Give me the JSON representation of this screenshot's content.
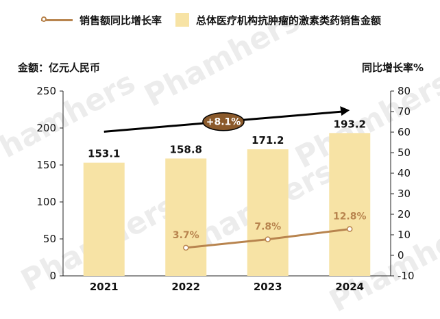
{
  "legend": {
    "line_label": "销售额同比增长率",
    "bar_label": "总体医疗机构抗肿瘤的激素类药销售金额"
  },
  "axis": {
    "left_title": "金额：亿元人民币",
    "right_title": "同比增长率%"
  },
  "watermark_text": "Phamhers",
  "chart_data": {
    "type": "bar",
    "categories": [
      "2021",
      "2022",
      "2023",
      "2024"
    ],
    "series": [
      {
        "name": "总体医疗机构抗肿瘤的激素类药销售金额",
        "type": "bar",
        "axis": "left",
        "values": [
          153.1,
          158.8,
          171.2,
          193.2
        ],
        "labels": [
          "153.1",
          "158.8",
          "171.2",
          "193.2"
        ]
      },
      {
        "name": "销售额同比增长率",
        "type": "line",
        "axis": "right",
        "values": [
          null,
          3.7,
          7.8,
          12.8
        ],
        "labels": [
          "",
          "3.7%",
          "7.8%",
          "12.8%"
        ]
      }
    ],
    "y_left": {
      "min": 0,
      "max": 250,
      "step": 50
    },
    "y_right": {
      "min": -10,
      "max": 80,
      "step": 10
    },
    "annotation": "+8.1%",
    "colors": {
      "bar": "#f7e3a5",
      "line": "#b8844e",
      "arrow": "#000000",
      "badge": "#8b5a2b"
    },
    "grid": false,
    "legend_position": "top"
  }
}
